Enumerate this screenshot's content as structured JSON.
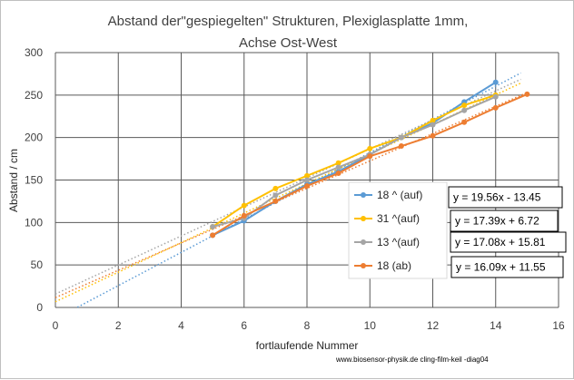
{
  "chart_data": {
    "type": "scatter",
    "title_lines": [
      "Abstand der\"gespiegelten\" Strukturen, Plexiglasplatte 1mm,",
      "Achse Ost-West"
    ],
    "xlabel": "fortlaufende Nummer",
    "ylabel": "Abstand / cm",
    "xlim": [
      0,
      16
    ],
    "ylim": [
      0,
      300
    ],
    "x_ticks": [
      0,
      2,
      4,
      6,
      8,
      10,
      12,
      14,
      16
    ],
    "y_ticks": [
      0,
      50,
      100,
      150,
      200,
      250,
      300
    ],
    "grid": true,
    "legend_position": "right",
    "series": [
      {
        "name": "18 ^  (auf)",
        "color": "#5b9bd5",
        "x": [
          5,
          6,
          7,
          8,
          9,
          10,
          11,
          12,
          13,
          14
        ],
        "y": [
          85,
          102,
          125,
          145,
          160,
          180,
          200,
          217,
          242,
          265
        ],
        "trendline": {
          "slope": 19.56,
          "intercept": -13.45,
          "x_range": [
            0.7,
            14.8
          ],
          "label": "y = 19.56x - 13.45"
        }
      },
      {
        "name": "31 ^(auf)",
        "color": "#ffc000",
        "x": [
          5,
          6,
          7,
          8,
          9,
          10,
          11,
          12,
          13,
          14
        ],
        "y": [
          95,
          120,
          140,
          155,
          170,
          187,
          200,
          220,
          238,
          250
        ],
        "trendline": {
          "slope": 17.39,
          "intercept": 6.72,
          "x_range": [
            0,
            14.8
          ],
          "label": "y = 17.39x + 6.72"
        }
      },
      {
        "name": "13 ^(auf)",
        "color": "#a5a5a5",
        "x": [
          5,
          6,
          7,
          8,
          9,
          10,
          11,
          12,
          13,
          14
        ],
        "y": [
          95,
          105,
          132,
          150,
          165,
          180,
          200,
          215,
          232,
          248
        ],
        "trendline": {
          "slope": 17.08,
          "intercept": 15.81,
          "x_range": [
            0,
            14.8
          ],
          "label": "y = 17.08x + 15.81"
        }
      },
      {
        "name": "18 (ab)",
        "color": "#ed7d31",
        "x": [
          5,
          6,
          7,
          8,
          9,
          10,
          11,
          12,
          13,
          14,
          15
        ],
        "y": [
          85,
          108,
          125,
          143,
          158,
          178,
          190,
          202,
          218,
          235,
          251
        ],
        "trendline": {
          "slope": 16.09,
          "intercept": 11.55,
          "x_range": [
            0,
            15
          ],
          "label": "y = 16.09x + 11.55"
        }
      }
    ],
    "credit": "www.biosensor-physik.de  cling-film-keil -diag04"
  }
}
